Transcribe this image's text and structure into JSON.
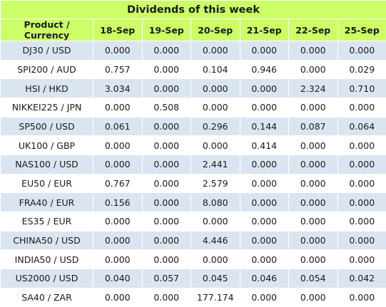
{
  "title": "Dividends of this week",
  "header": {
    "product": "Product / Currency",
    "dates": [
      "18-Sep",
      "19-Sep",
      "20-Sep",
      "21-Sep",
      "22-Sep",
      "25-Sep"
    ]
  },
  "rows": [
    {
      "product": "DJ30 / USD",
      "values": [
        "0.000",
        "0.000",
        "0.000",
        "0.000",
        "0.000",
        "0.000"
      ]
    },
    {
      "product": "SPI200 / AUD",
      "values": [
        "0.757",
        "0.000",
        "0.104",
        "0.946",
        "0.000",
        "0.029"
      ]
    },
    {
      "product": "HSI / HKD",
      "values": [
        "3.034",
        "0.000",
        "0.000",
        "0.000",
        "2.324",
        "0.710"
      ]
    },
    {
      "product": "NIKKEI225 / JPN",
      "values": [
        "0.000",
        "0.508",
        "0.000",
        "0.000",
        "0.000",
        "0.000"
      ]
    },
    {
      "product": "SP500 / USD",
      "values": [
        "0.061",
        "0.000",
        "0.296",
        "0.144",
        "0.087",
        "0.064"
      ]
    },
    {
      "product": "UK100 / GBP",
      "values": [
        "0.000",
        "0.000",
        "0.000",
        "0.414",
        "0.000",
        "0.000"
      ]
    },
    {
      "product": "NAS100 / USD",
      "values": [
        "0.000",
        "0.000",
        "2.441",
        "0.000",
        "0.000",
        "0.000"
      ]
    },
    {
      "product": "EU50 / EUR",
      "values": [
        "0.767",
        "0.000",
        "2.579",
        "0.000",
        "0.000",
        "0.000"
      ]
    },
    {
      "product": "FRA40 / EUR",
      "values": [
        "0.156",
        "0.000",
        "8.080",
        "0.000",
        "0.000",
        "0.000"
      ]
    },
    {
      "product": "ES35 / EUR",
      "values": [
        "0.000",
        "0.000",
        "0.000",
        "0.000",
        "0.000",
        "0.000"
      ]
    },
    {
      "product": "CHINA50 / USD",
      "values": [
        "0.000",
        "0.000",
        "4.446",
        "0.000",
        "0.000",
        "0.000"
      ]
    },
    {
      "product": "INDIA50 / USD",
      "values": [
        "0.000",
        "0.000",
        "0.000",
        "0.000",
        "0.000",
        "0.000"
      ]
    },
    {
      "product": "US2000 / USD",
      "values": [
        "0.040",
        "0.057",
        "0.045",
        "0.046",
        "0.054",
        "0.042"
      ]
    },
    {
      "product": "SA40 / ZAR",
      "values": [
        "0.000",
        "0.000",
        "177.174",
        "0.000",
        "0.000",
        "0.000"
      ]
    }
  ],
  "colors": {
    "header_bg": "#ccff66",
    "odd_row_bg": "#dbe5f1",
    "even_row_bg": "#ffffff"
  }
}
